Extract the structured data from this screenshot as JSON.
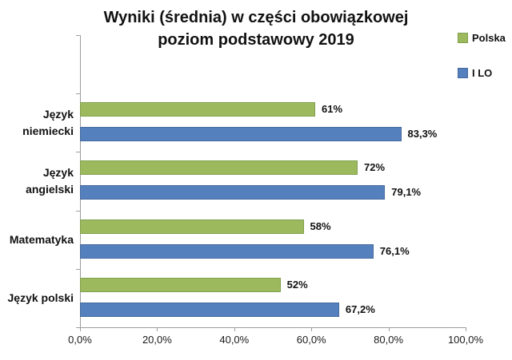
{
  "title": {
    "line1": "Wyniki (średnia) w części obowiązkowej",
    "line2": "poziom podstawowy 2019"
  },
  "legend": [
    {
      "label": "Polska",
      "color": "#9CB95E",
      "border_color": "#7FA04C"
    },
    {
      "label": "I LO",
      "color": "#5580BE",
      "border_color": "#44689D"
    }
  ],
  "chart_data": {
    "type": "bar",
    "orientation": "horizontal",
    "title": "Wyniki (średnia) w części obowiązkowej poziom podstawowy 2019",
    "categories": [
      "Język niemiecki",
      "Język angielski",
      "Matematyka",
      "Język polski"
    ],
    "category_label_lines": [
      [
        "Język",
        "niemiecki"
      ],
      [
        "Język",
        "angielski"
      ],
      [
        "Matematyka"
      ],
      [
        "Język polski"
      ]
    ],
    "series": [
      {
        "name": "Polska",
        "color": "#9CB95E",
        "border_color": "#7FA04C",
        "values": [
          61,
          72,
          58,
          52
        ],
        "data_labels": [
          "61%",
          "72%",
          "58%",
          "52%"
        ]
      },
      {
        "name": "I LO",
        "color": "#5580BE",
        "border_color": "#44689D",
        "values": [
          83.3,
          79.1,
          76.1,
          67.2
        ],
        "data_labels": [
          "83,3%",
          "79,1%",
          "76,1%",
          "67,2%"
        ]
      }
    ],
    "xlabel": "",
    "ylabel": "",
    "x_axis": {
      "min": 0,
      "max": 100,
      "tick_labels": [
        "0,0%",
        "20,0%",
        "40,0%",
        "60,0%",
        "80,0%",
        "100,0%"
      ]
    },
    "grid": false,
    "legend_position": "top-right"
  }
}
